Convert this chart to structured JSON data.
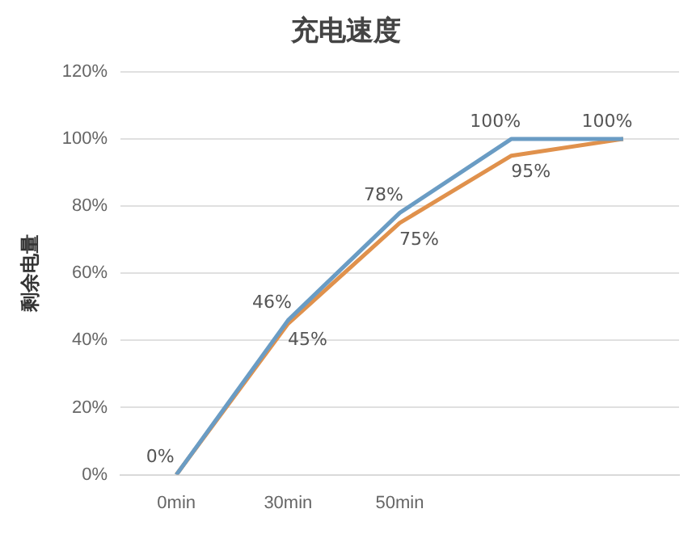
{
  "chart_data": {
    "type": "line",
    "title": "充电速度",
    "ylabel": "剩余电量",
    "categories": [
      "0min",
      "30min",
      "50min",
      null,
      null
    ],
    "series": [
      {
        "color": "#6a9cc4",
        "values": [
          0,
          46,
          78,
          100,
          100
        ],
        "value_labels": [
          "0%",
          "46%",
          "78%",
          "100%",
          null
        ]
      },
      {
        "color": "#e0914c",
        "values": [
          0,
          45,
          75,
          95,
          100
        ],
        "value_labels": [
          null,
          "45%",
          "75%",
          "95%",
          "100%"
        ]
      }
    ],
    "ylim": [
      0,
      120
    ],
    "yticks": [
      {
        "value": 0,
        "label": "0%"
      },
      {
        "value": 20,
        "label": "20%"
      },
      {
        "value": 40,
        "label": "40%"
      },
      {
        "value": 60,
        "label": "60%"
      },
      {
        "value": 80,
        "label": "80%"
      },
      {
        "value": 100,
        "label": "100%"
      },
      {
        "value": 120,
        "label": "120%"
      }
    ],
    "grid": "y",
    "legend": false,
    "marker": "none",
    "line_style": "solid"
  }
}
